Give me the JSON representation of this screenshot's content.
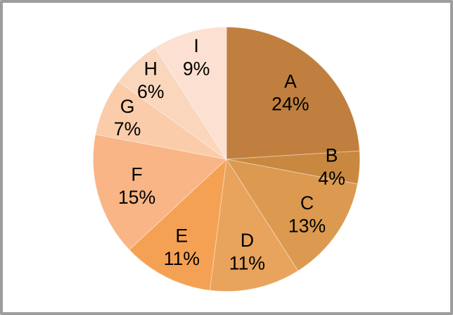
{
  "chart_data": {
    "type": "pie",
    "title": "",
    "categories": [
      "A",
      "B",
      "C",
      "D",
      "E",
      "F",
      "G",
      "H",
      "I"
    ],
    "values": [
      24,
      4,
      13,
      11,
      11,
      15,
      7,
      6,
      9
    ],
    "percent_labels": [
      "24%",
      "4%",
      "13%",
      "11%",
      "11%",
      "15%",
      "7%",
      "6%",
      "9%"
    ],
    "colors": [
      "#C07F3E",
      "#C9883F",
      "#DB9A50",
      "#E8A35C",
      "#F5A154",
      "#F9B586",
      "#FACCA9",
      "#FAD6BC",
      "#FCE0D1"
    ],
    "start_angle": 0,
    "direction": "clockwise",
    "label_position": "inside",
    "legend_position": "none",
    "text_color": "#000000",
    "slice_edge_color": "#FFFFFF",
    "frame_border_color": "#9D9D9D",
    "background_color": "#FFFFFF"
  }
}
